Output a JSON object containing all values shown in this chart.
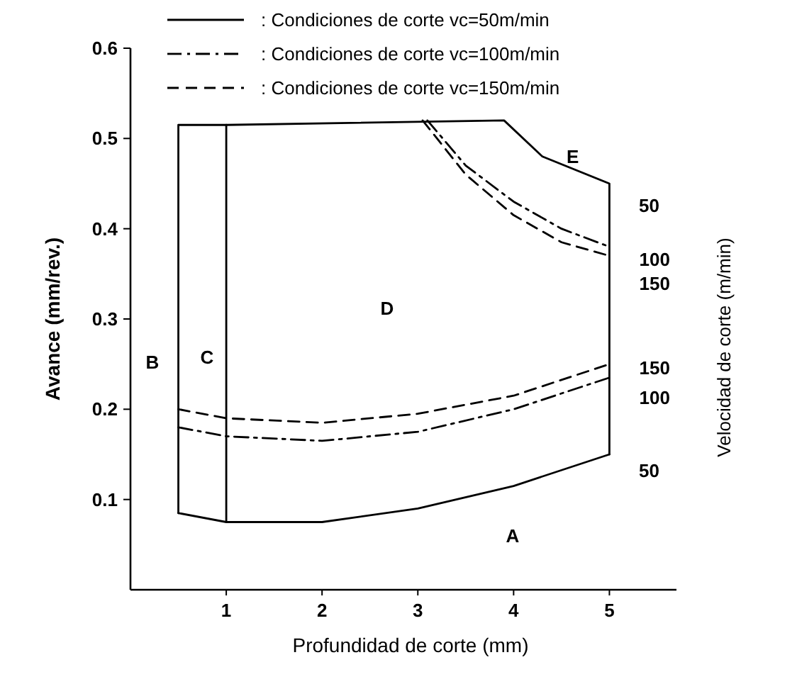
{
  "chart_data": {
    "type": "line",
    "xlabel": "Profundidad de corte (mm)",
    "ylabel": "Avance (mm/rev.)",
    "y2label": "Velocidad de corte (m/min)",
    "xlim": [
      0,
      5.7
    ],
    "xticks": [
      1,
      2,
      3,
      4,
      5
    ],
    "ylim": [
      0,
      0.6
    ],
    "yticks": [
      0.1,
      0.2,
      0.3,
      0.4,
      0.5,
      0.6
    ],
    "legend": "top",
    "marker": "none",
    "series": [
      {
        "name": ": Condiciones de corte vc=50m/min",
        "color": "#000000",
        "line_style": "solid",
        "x": [
          0.5,
          1,
          2,
          3,
          4,
          5
        ],
        "values": [
          0.085,
          0.075,
          0.075,
          0.09,
          0.115,
          0.15
        ]
      },
      {
        "name": ": Condiciones de corte vc=100m/min",
        "color": "#000000",
        "line_style": "dashdot",
        "x": [
          0.5,
          1,
          2,
          3,
          4,
          5
        ],
        "values": [
          0.18,
          0.17,
          0.165,
          0.175,
          0.2,
          0.235
        ]
      },
      {
        "name": ": Condiciones de corte vc=150m/min",
        "color": "#000000",
        "line_style": "dashed",
        "x": [
          0.5,
          1,
          2,
          3,
          4,
          5
        ],
        "values": [
          0.2,
          0.19,
          0.185,
          0.195,
          0.215,
          0.25
        ]
      },
      {
        "color": "#000000",
        "line_style": "solid",
        "x": [
          1,
          3.9,
          4.3,
          5,
          5
        ],
        "values": [
          0.515,
          0.52,
          0.48,
          0.45,
          0.15
        ]
      },
      {
        "color": "#000000",
        "line_style": "dashdot",
        "x": [
          3.1,
          3.5,
          4,
          4.5,
          5
        ],
        "values": [
          0.52,
          0.47,
          0.43,
          0.4,
          0.38
        ]
      },
      {
        "color": "#000000",
        "line_style": "dashed",
        "x": [
          3.05,
          3.5,
          4,
          4.5,
          5
        ],
        "values": [
          0.52,
          0.46,
          0.415,
          0.385,
          0.37
        ]
      },
      {
        "color": "#000000",
        "line_style": "solid",
        "x": [
          1,
          1,
          0.5,
          0.5
        ],
        "values": [
          0.075,
          0.515,
          0.515,
          0.085
        ]
      }
    ],
    "annotations": [
      "A",
      "B",
      "C",
      "D",
      "E",
      "50",
      "100",
      "150",
      "150",
      "100",
      "50"
    ]
  }
}
